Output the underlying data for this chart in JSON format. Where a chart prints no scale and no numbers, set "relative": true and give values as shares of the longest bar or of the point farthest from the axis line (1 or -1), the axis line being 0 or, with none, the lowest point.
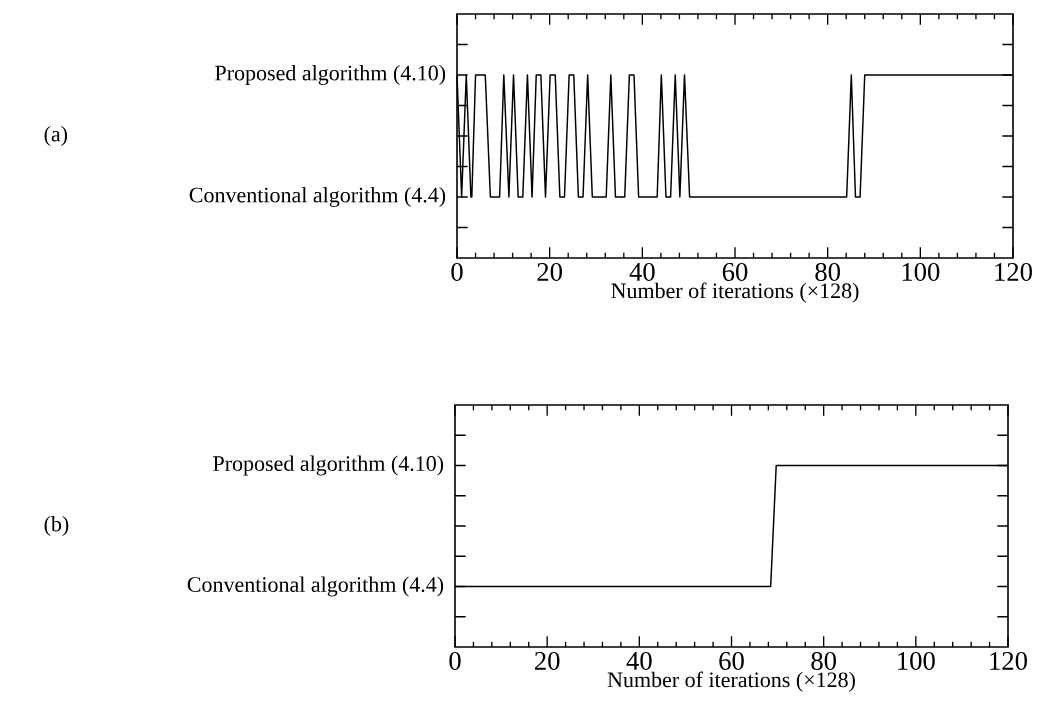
{
  "chart_data": [
    {
      "type": "line",
      "relative": true,
      "xlabel": "Number of iterations (×128)",
      "annotations": [
        "(a)",
        "Proposed algorithm (4.10)",
        "Conventional algorithm (4.4)"
      ],
      "xlim": [
        0,
        120
      ],
      "xticks": [
        0,
        20,
        40,
        60,
        80,
        100,
        120
      ],
      "series": [
        {
          "color": "#000000",
          "x": [
            0,
            1,
            2,
            3,
            3.2,
            4,
            6.1,
            7.2,
            9.2,
            10.1,
            11.2,
            12.2,
            13.2,
            14.2,
            15.2,
            16.2,
            17.1,
            18.1,
            19.1,
            20.1,
            21.2,
            22.2,
            23.2,
            24.2,
            25.2,
            26.2,
            27.2,
            28.2,
            29.2,
            32.2,
            33.2,
            34.2,
            36.2,
            37.2,
            38.2,
            39.2,
            43.2,
            44.1,
            45.1,
            46.1,
            47.1,
            48.1,
            49.1,
            50.2,
            84.1,
            85.1,
            86.0,
            87.0,
            88.0,
            120
          ],
          "values": [
            1,
            0,
            1,
            0,
            0,
            1,
            1,
            0,
            0,
            1,
            0,
            1,
            0,
            0,
            1,
            0,
            1,
            1,
            0,
            1,
            1,
            0,
            0,
            1,
            1,
            0,
            0,
            1,
            0,
            0,
            1,
            0,
            0,
            1,
            1,
            0,
            0,
            1,
            0,
            0,
            1,
            0,
            1,
            0,
            0,
            1,
            0,
            0,
            1,
            1
          ]
        }
      ]
    },
    {
      "type": "line",
      "relative": true,
      "xlabel": "Number of iterations (×128)",
      "annotations": [
        "(b)",
        "Proposed algorithm (4.10)",
        "Conventional algorithm (4.4)"
      ],
      "xlim": [
        0,
        120
      ],
      "xticks": [
        0,
        20,
        40,
        60,
        80,
        100,
        120
      ],
      "series": [
        {
          "color": "#000000",
          "x": [
            0,
            68.5,
            69.7,
            120
          ],
          "values": [
            0,
            0,
            1,
            1
          ]
        }
      ]
    }
  ]
}
